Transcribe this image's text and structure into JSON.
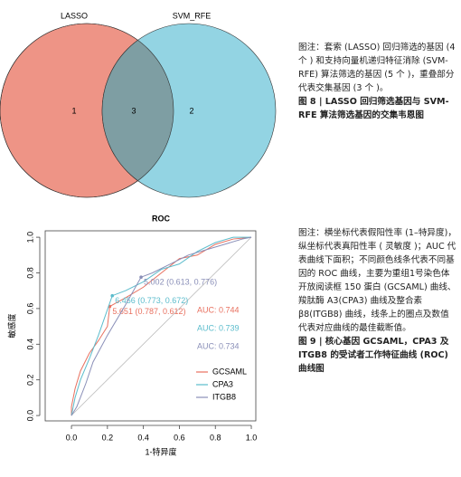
{
  "venn": {
    "sets": [
      "LASSO",
      "SVM_RFE"
    ],
    "counts": [
      "1",
      "3",
      "2"
    ]
  },
  "figure8": {
    "note": "图注：套索 (LASSO) 回归筛选的基因 (4 个 ) 和支持向量机递归特征消除 (SVM-RFE) 算法筛选的基因 (5 个 )，重叠部分代表交集基因 (3 个 )。",
    "caption": "图 8 | LASSO 回归筛选基因与 SVM-RFE 算法筛选基因的交集韦恩图"
  },
  "figure9": {
    "note": "图注：横坐标代表假阳性率 (1–特异度)，纵坐标代表真阳性率 ( 灵敏度 )；AUC 代表曲线下面积；不同颜色线条代表不同基因的 ROC 曲线，主要为重组1号染色体开放阅读框 150 蛋白 (GCSAML) 曲线、羧肽酶 A3(CPA3) 曲线及整合素 β8(ITGB8) 曲线，线条上的圈点及数值代表对应曲线的最佳截断值。",
    "caption": "图 9 | 核心基因 GCSAML，CPA3 及 ITGB8 的受试者工作特征曲线 (ROC) 曲线图"
  },
  "chart_data": {
    "type": "line",
    "title": "ROC",
    "x_label": "1-特异度",
    "y_label": "敏感度",
    "xlim": [
      -0.146,
      1.025
    ],
    "ylim": [
      -0.03,
      1.036
    ],
    "xticks": [
      {
        "value": 0,
        "label": "0.0"
      },
      {
        "value": 0.2,
        "label": "0.2"
      },
      {
        "value": 0.4,
        "label": "0.4"
      },
      {
        "value": 0.6,
        "label": "0.6"
      },
      {
        "value": 0.8,
        "label": "0.8"
      },
      {
        "value": 1,
        "label": "1.0"
      }
    ],
    "yticks": [
      {
        "value": 0,
        "label": "0.0"
      },
      {
        "value": 0.2,
        "label": "0.2"
      },
      {
        "value": 0.4,
        "label": "0.4"
      },
      {
        "value": 0.6,
        "label": "0.6"
      },
      {
        "value": 0.8,
        "label": "0.8"
      },
      {
        "value": 1,
        "label": "1.0"
      }
    ],
    "legend": "bottom-right",
    "series": [
      {
        "name": "GCSAML",
        "color": "#e8705f",
        "x": [
          0,
          0,
          0.02,
          0.05,
          0.1,
          0.15,
          0.2,
          0.213,
          0.3,
          0.4,
          0.5,
          0.6,
          0.7,
          0.8,
          0.9,
          1
        ],
        "values": [
          0,
          0.05,
          0.15,
          0.25,
          0.35,
          0.42,
          0.5,
          0.612,
          0.66,
          0.72,
          0.8,
          0.88,
          0.9,
          0.96,
          0.99,
          1
        ],
        "cutoff": {
          "x": 0.213,
          "y": 0.612,
          "label": "5.651 (0.787, 0.612)"
        },
        "auc_label": "AUC: 0.744"
      },
      {
        "name": "CPA3",
        "color": "#5bbccc",
        "x": [
          0,
          0.02,
          0.05,
          0.1,
          0.15,
          0.227,
          0.3,
          0.4,
          0.5,
          0.6,
          0.7,
          0.8,
          0.9,
          1
        ],
        "values": [
          0,
          0.1,
          0.2,
          0.32,
          0.45,
          0.672,
          0.7,
          0.75,
          0.82,
          0.85,
          0.92,
          0.97,
          1,
          1
        ],
        "cutoff": {
          "x": 0.227,
          "y": 0.672,
          "label": "6.456 (0.773, 0.672)"
        },
        "auc_label": "AUC: 0.739"
      },
      {
        "name": "ITGB8",
        "color": "#8a8fb8",
        "x": [
          0,
          0.03,
          0.08,
          0.12,
          0.2,
          0.3,
          0.387,
          0.45,
          0.55,
          0.65,
          0.75,
          0.85,
          0.95,
          1
        ],
        "values": [
          0,
          0.05,
          0.18,
          0.3,
          0.45,
          0.62,
          0.776,
          0.8,
          0.85,
          0.9,
          0.93,
          0.96,
          0.99,
          1
        ],
        "cutoff": {
          "x": 0.387,
          "y": 0.776,
          "label": "5.002 (0.613, 0.776)"
        },
        "auc_label": "AUC: 0.734"
      }
    ]
  }
}
